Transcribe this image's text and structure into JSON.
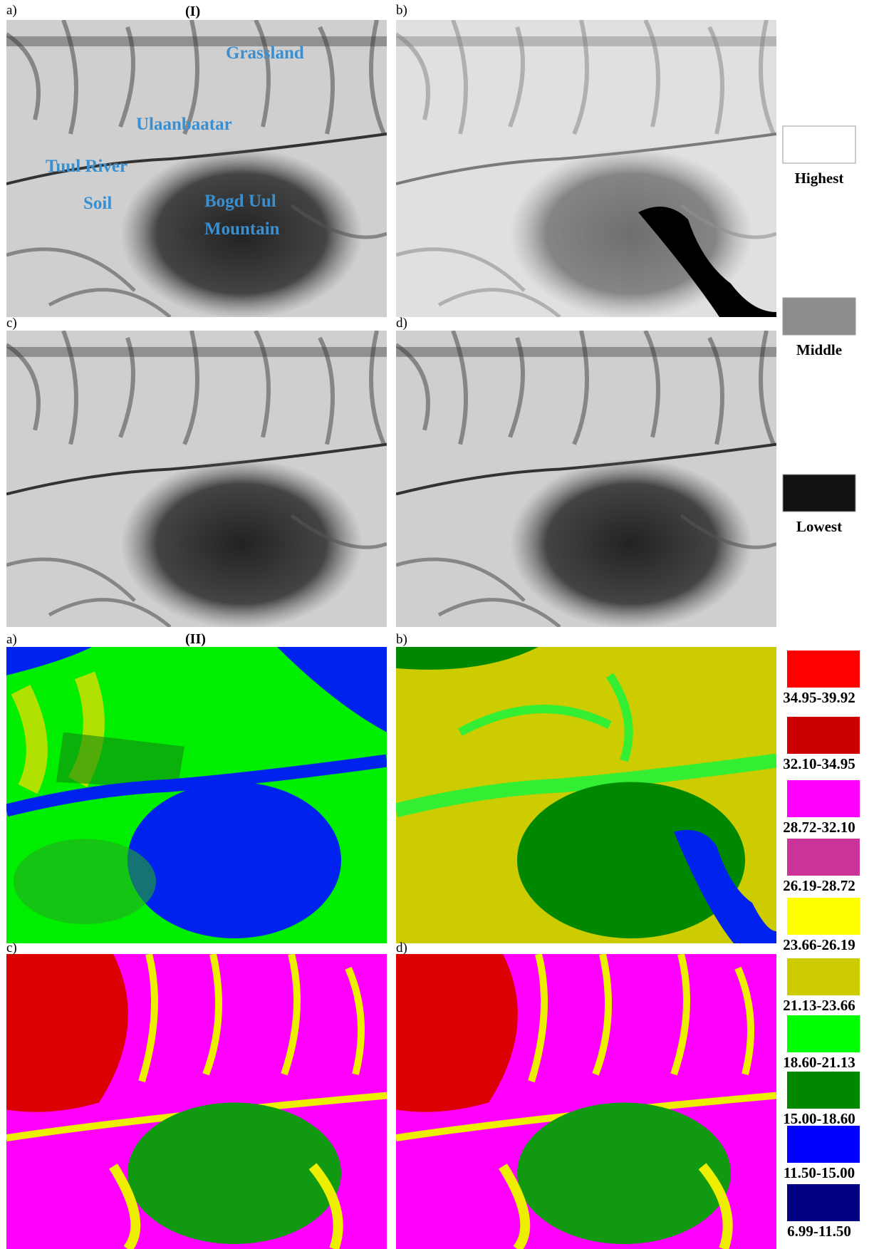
{
  "part_I": {
    "label": "(I)",
    "panel_labels": [
      "a)",
      "b)",
      "c)",
      "d)"
    ],
    "annotations": [
      "Grassland",
      "Ulaanbaatar",
      "Tuul River",
      "Soil",
      "Bogd Uul",
      "Mountain"
    ],
    "legend": [
      {
        "label": "Highest",
        "color": "#ffffff"
      },
      {
        "label": "Middle",
        "color": "#8c8c8c"
      },
      {
        "label": "Lowest",
        "color": "#111111"
      }
    ]
  },
  "part_II": {
    "label": "(II)",
    "panel_labels": [
      "a)",
      "b)",
      "c)",
      "d)"
    ],
    "legend": [
      {
        "label": "34.95-39.92",
        "color": "#ff0000"
      },
      {
        "label": "32.10-34.95",
        "color": "#cc0000"
      },
      {
        "label": "28.72-32.10",
        "color": "#ff00ff"
      },
      {
        "label": "26.19-28.72",
        "color": "#cc3399"
      },
      {
        "label": "23.66-26.19",
        "color": "#ffff00"
      },
      {
        "label": "21.13-23.66",
        "color": "#cccc00"
      },
      {
        "label": "18.60-21.13",
        "color": "#00ff00"
      },
      {
        "label": "15.00-18.60",
        "color": "#008800"
      },
      {
        "label": "11.50-15.00",
        "color": "#0000ff"
      },
      {
        "label": "6.99-11.50",
        "color": "#000080"
      }
    ]
  }
}
